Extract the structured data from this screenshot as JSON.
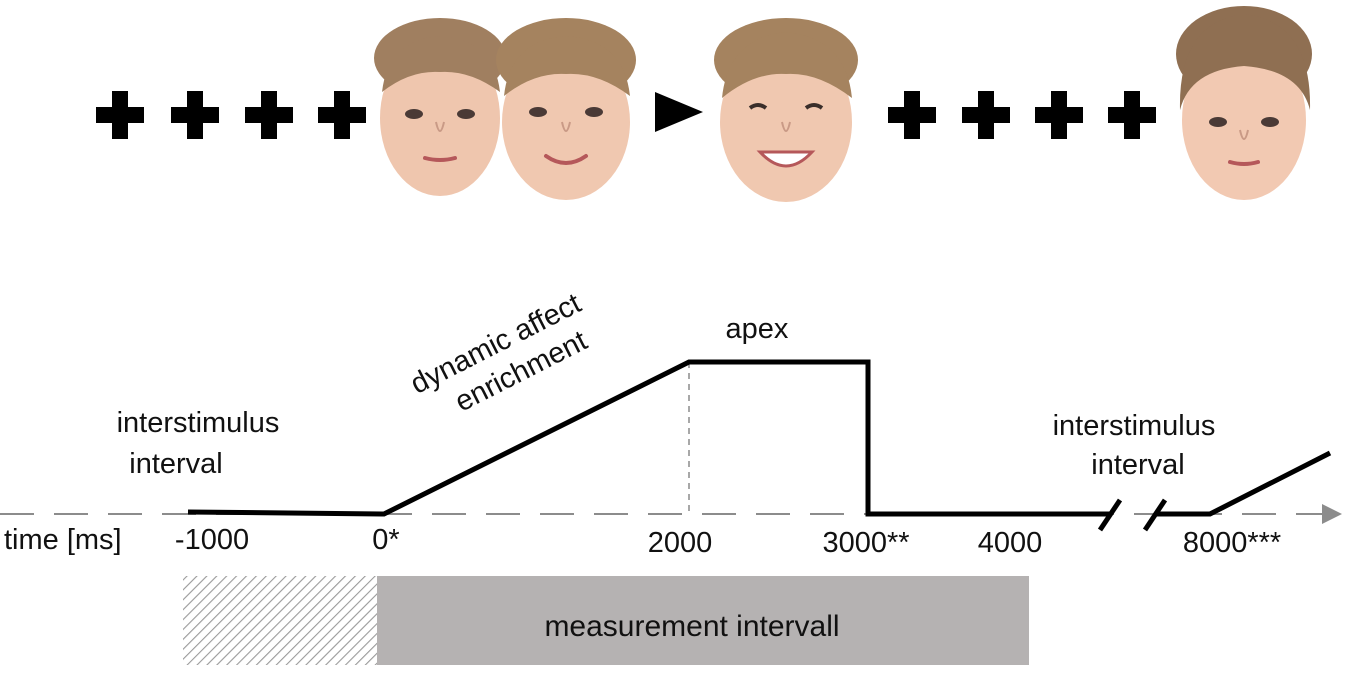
{
  "colors": {
    "line": "#000000",
    "axis": "#8c8c8c",
    "measure_fill": "#b5b2b2",
    "hatch": "#9a9a9a",
    "skin": "#f0c7b0",
    "hair": "#9c7a5a"
  },
  "stimulus_sequence": [
    {
      "type": "fixation-cross"
    },
    {
      "type": "fixation-cross"
    },
    {
      "type": "fixation-cross"
    },
    {
      "type": "fixation-cross"
    },
    {
      "type": "face",
      "expression": "neutral"
    },
    {
      "type": "face",
      "expression": "slight-smile"
    },
    {
      "type": "arrow"
    },
    {
      "type": "face",
      "expression": "full-smile"
    },
    {
      "type": "fixation-cross"
    },
    {
      "type": "fixation-cross"
    },
    {
      "type": "fixation-cross"
    },
    {
      "type": "fixation-cross"
    },
    {
      "type": "face",
      "expression": "neutral-new-child"
    }
  ],
  "timeline": {
    "axis_label": "time [ms]",
    "ticks": [
      "-1000",
      "0*",
      "2000",
      "3000**",
      "4000",
      "8000***"
    ],
    "phases": {
      "interstimulus_left": [
        "interstimulus",
        "interval"
      ],
      "dynamic": [
        "dynamic affect",
        "enrichment"
      ],
      "apex": "apex",
      "interstimulus_right": [
        "interstimulus",
        "interval"
      ]
    },
    "measurement_label": "measurement intervall"
  }
}
